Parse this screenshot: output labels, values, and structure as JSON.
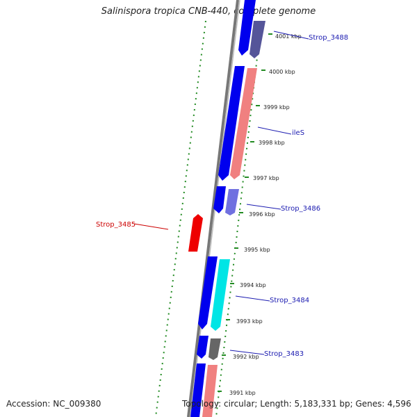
{
  "map": {
    "title": "Salinispora tropica CNB-440, complete genome",
    "accession": "Accession: NC_009380",
    "topology": "Topology: circular; Length: 5,183,331 bp; Genes: 4,596"
  },
  "ticks": [
    "4001 kbp",
    "4000 kbp",
    "3999 kbp",
    "3998 kbp",
    "3997 kbp",
    "3996 kbp",
    "3995 kbp",
    "3994 kbp",
    "3993 kbp",
    "3992 kbp",
    "3991 kbp"
  ],
  "gene_labels": {
    "strop_3488": "Strop_3488",
    "iles": "ileS",
    "strop_3486": "Strop_3486",
    "strop_3485": "Strop_3485",
    "strop_3484": "Strop_3484",
    "strop_3483": "Strop_3483"
  },
  "colors": {
    "forward_strand": "#0000ee",
    "rrna_like": "#f08080",
    "protein": "#7070e0",
    "reverse_gene": "#ee0000",
    "cyan_gene": "#00e5e5",
    "gray_gene": "#666666",
    "gc_dots": "#228b22"
  }
}
